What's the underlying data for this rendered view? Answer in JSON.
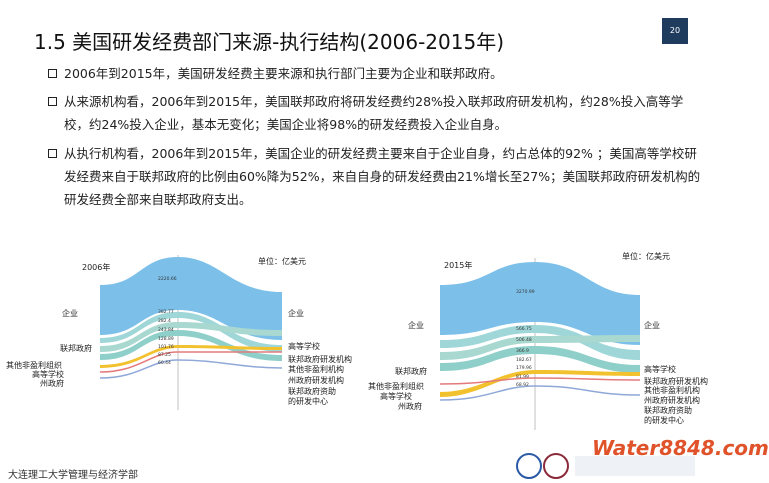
{
  "header": {
    "title": "1.5  美国研发经费部门来源-执行结构(2006-2015年)",
    "page": "20"
  },
  "bullets": [
    "2006年到2015年，美国研发经费主要来源和执行部门主要为企业和联邦政府。",
    "从来源机构看，2006年到2015年，美国联邦政府将研发经费约28%投入联邦政府研发机构，约28%投入高等学校，约24%投入企业，基本无变化；美国企业将98%的研发经费投入企业自身。",
    "从执行机构看，2006年到2015年，美国企业的研发经费主要来自于企业自身，约占总体的92% ；美国高等学校研发经费来自于联邦政府的比例由60%降为52%，来自自身的研发经费由21%增长至27%；美国联邦政府研发机构的研发经费全部来自联邦政府支出。"
  ],
  "sankeys": [
    {
      "year": "2006年",
      "unit": "单位：亿美元",
      "left_labels": [
        "企业",
        "联邦政府",
        "其他非盈利组织",
        "高等学校",
        "州政府"
      ],
      "right_labels": [
        "企业",
        "高等学校",
        "联邦政府研发机构",
        "其他非盈利机构",
        "州政府研发机构",
        "联邦政府资助",
        "的研发中心"
      ],
      "flow_labels": [
        "2220.66",
        "382.77",
        "282.4",
        "243.84",
        "128.89",
        "101.76",
        "87.25",
        "60.44"
      ]
    },
    {
      "year": "2015年",
      "unit": "单位：亿美元",
      "left_labels": [
        "企业",
        "联邦政府",
        "其他非盈利组织",
        "高等学校",
        "州政府"
      ],
      "right_labels": [
        "企业",
        "高等学校",
        "联邦政府研发机构",
        "其他非盈利机构",
        "州政府研发机构",
        "联邦政府资助",
        "的研发中心"
      ],
      "flow_labels": [
        "3270.99",
        "566.75",
        "506.48",
        "366.9",
        "182.67",
        "179.96",
        "81.99",
        "68.92"
      ]
    }
  ],
  "footer": "大连理工大学管理与经济学部",
  "watermark": "Water8848.com"
}
